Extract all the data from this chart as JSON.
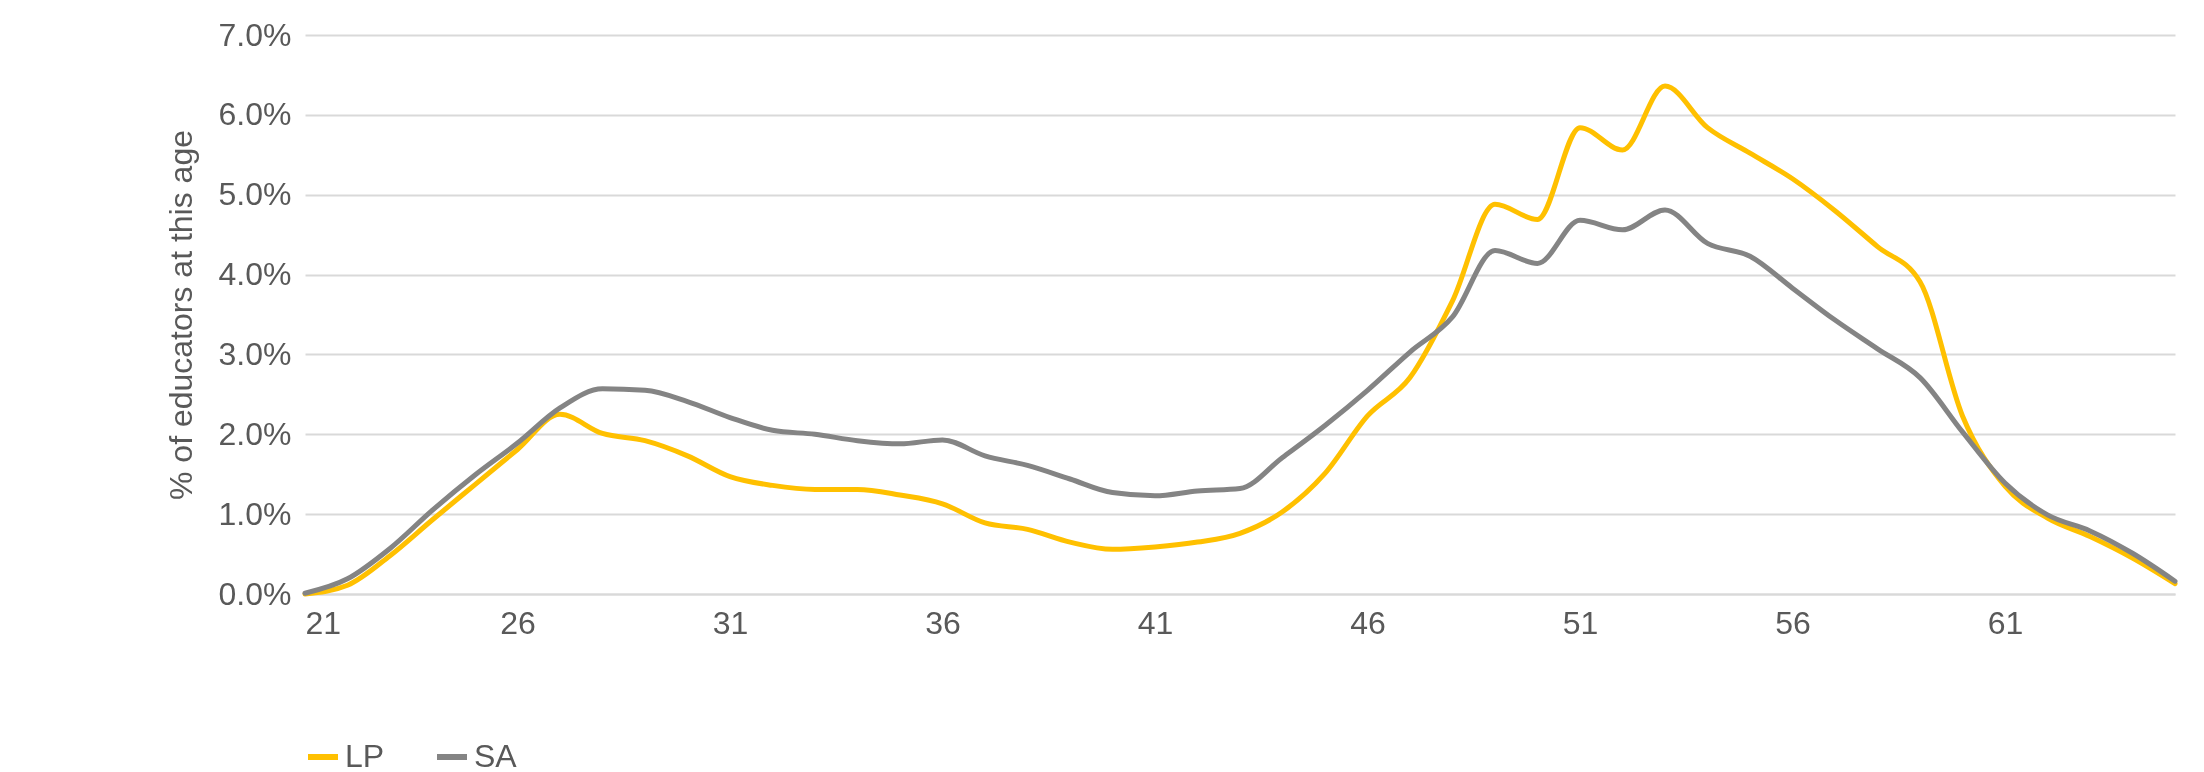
{
  "chart_data": {
    "type": "line",
    "ylabel": "% of educators at this age",
    "x": [
      21,
      22,
      23,
      24,
      25,
      26,
      27,
      28,
      29,
      30,
      31,
      32,
      33,
      34,
      35,
      36,
      37,
      38,
      39,
      40,
      41,
      42,
      43,
      44,
      45,
      46,
      47,
      48,
      49,
      50,
      51,
      52,
      53,
      54,
      55,
      56,
      57,
      58,
      59,
      60,
      61,
      62,
      63,
      64,
      65
    ],
    "xlim": [
      21,
      65
    ],
    "xticks": [
      21,
      26,
      31,
      36,
      41,
      46,
      51,
      56,
      61
    ],
    "ylim": [
      0,
      7
    ],
    "yticks": [
      {
        "value": 0,
        "label": "0.0%"
      },
      {
        "value": 1,
        "label": "1.0%"
      },
      {
        "value": 2,
        "label": "2.0%"
      },
      {
        "value": 3,
        "label": "3.0%"
      },
      {
        "value": 4,
        "label": "4.0%"
      },
      {
        "value": 5,
        "label": "5.0%"
      },
      {
        "value": 6,
        "label": "6.0%"
      },
      {
        "value": 7,
        "label": "7.0%"
      }
    ],
    "grid": "y",
    "legend": "bottom",
    "line_style": "solid",
    "marker": "none",
    "series": [
      {
        "name": "LP",
        "color": "#ffc000",
        "values": [
          0.0,
          0.11,
          0.48,
          0.93,
          1.37,
          1.81,
          2.25,
          2.01,
          1.92,
          1.73,
          1.47,
          1.36,
          1.31,
          1.31,
          1.24,
          1.13,
          0.89,
          0.81,
          0.65,
          0.56,
          0.59,
          0.65,
          0.76,
          1.03,
          1.51,
          2.23,
          2.71,
          3.67,
          4.88,
          4.69,
          5.84,
          5.56,
          6.36,
          5.84,
          5.52,
          5.2,
          4.8,
          4.35,
          3.91,
          2.23,
          1.35,
          0.95,
          0.72,
          0.45,
          0.13
        ]
      },
      {
        "name": "SA",
        "color": "#848484",
        "values": [
          0.01,
          0.19,
          0.57,
          1.05,
          1.49,
          1.89,
          2.33,
          2.57,
          2.55,
          2.41,
          2.21,
          2.05,
          2.0,
          1.92,
          1.88,
          1.93,
          1.73,
          1.61,
          1.44,
          1.27,
          1.23,
          1.29,
          1.32,
          1.71,
          2.11,
          2.55,
          3.03,
          3.47,
          4.3,
          4.14,
          4.68,
          4.56,
          4.81,
          4.39,
          4.23,
          3.83,
          3.43,
          3.07,
          2.71,
          2.03,
          1.39,
          0.99,
          0.79,
          0.51,
          0.16
        ]
      }
    ]
  }
}
